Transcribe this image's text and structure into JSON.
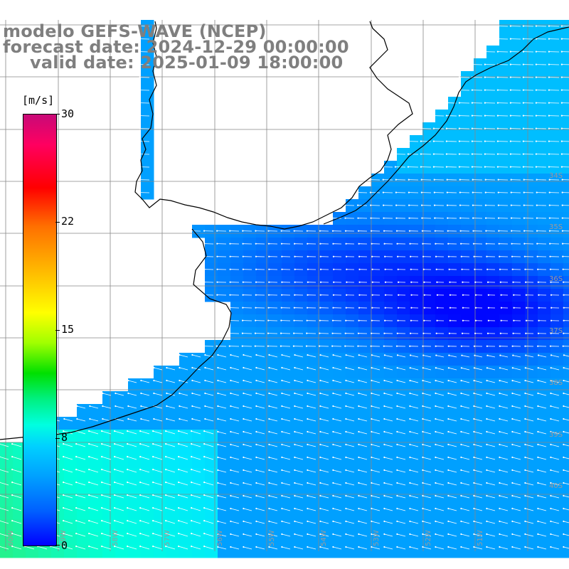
{
  "title": {
    "line1": "modelo GEFS-WAVE (NCEP)",
    "line2": "forecast date: 2024-12-29 00:00:00",
    "line3": "valid date: 2025-01-09 18:00:00"
  },
  "legend": {
    "unit": "[m/s]",
    "ticks": [
      "30",
      "22",
      "15",
      "8",
      "0"
    ],
    "tick_values": [
      30,
      22,
      15,
      8,
      0
    ],
    "max": 30,
    "min": 0,
    "colors": [
      "#0000ff",
      "#0060ff",
      "#00a0ff",
      "#00d0ff",
      "#00ffe0",
      "#00f080",
      "#00e000",
      "#a0ff00",
      "#ffff00",
      "#ffb000",
      "#ff7000",
      "#ff0000",
      "#ff0060",
      "#c80a78"
    ]
  },
  "grid": {
    "lat_labels": [
      "34S",
      "35S",
      "36S",
      "37S",
      "38S",
      "39S",
      "40S"
    ],
    "lon_labels": [
      "60W",
      "59W",
      "58W",
      "57W",
      "56W",
      "55W",
      "54W",
      "53W",
      "52W",
      "51W"
    ],
    "grid_color": "#888888"
  },
  "map": {
    "land_color": "#ffffff",
    "coast_color": "#000000",
    "arrow_color": "#ffffff",
    "field": "wind speed"
  }
}
